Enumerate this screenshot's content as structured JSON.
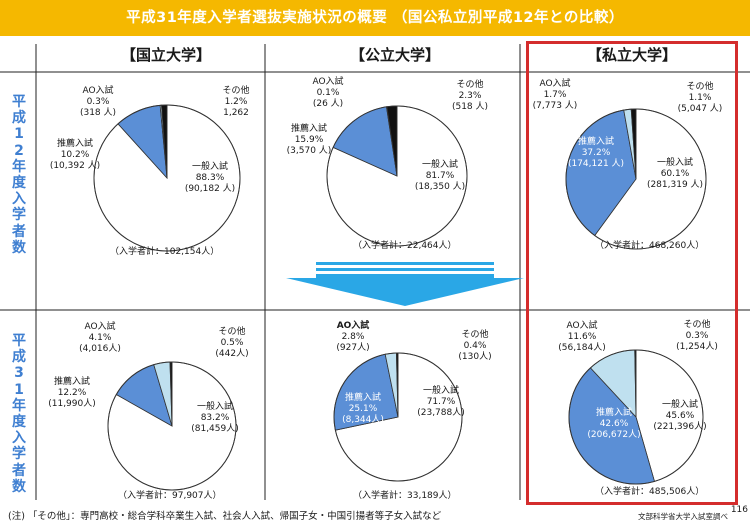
{
  "title": "平成31年度入学者選抜実施状況の概要 （国公私立別平成12年との比較）",
  "columns": [
    "【国立大学】",
    "【公立大学】",
    "【私立大学】"
  ],
  "rows": [
    {
      "label": "平成12年度入学者数"
    },
    {
      "label": "平成31年度入学者数"
    }
  ],
  "colors": {
    "banner": "#f5b800",
    "suisen": "#5b8fd6",
    "ao": "#bfe0ef",
    "other": "#111111",
    "ippan": "#ffffff",
    "highlight": "#d42d2d",
    "arrow": "#2aa7e6",
    "rowlabel": "#3f7fd1"
  },
  "chart_data": [
    {
      "type": "pie",
      "column": "【国立大学】",
      "row": "平成12年度入学者数",
      "slices": [
        {
          "name": "一般入試",
          "percent": "88.3%",
          "count": "(90,182 人)",
          "value": 88.3
        },
        {
          "name": "推薦入試",
          "percent": "10.2%",
          "count": "(10,392 人)",
          "value": 10.2
        },
        {
          "name": "AO入試",
          "percent": "0.3%",
          "count": "(318 人)",
          "value": 0.3
        },
        {
          "name": "その他",
          "percent": "1.2%",
          "count": "1,262",
          "value": 1.2
        }
      ],
      "total": "（入学者計：102,154人）"
    },
    {
      "type": "pie",
      "column": "【公立大学】",
      "row": "平成12年度入学者数",
      "slices": [
        {
          "name": "一般入試",
          "percent": "81.7%",
          "count": "(18,350 人)",
          "value": 81.7
        },
        {
          "name": "推薦入試",
          "percent": "15.9%",
          "count": "(3,570 人)",
          "value": 15.9
        },
        {
          "name": "AO入試",
          "percent": "0.1%",
          "count": "(26 人)",
          "value": 0.1
        },
        {
          "name": "その他",
          "percent": "2.3%",
          "count": "(518 人)",
          "value": 2.3
        }
      ],
      "total": "（入学者計：22,464人）"
    },
    {
      "type": "pie",
      "column": "【私立大学】",
      "row": "平成12年度入学者数",
      "slices": [
        {
          "name": "一般入試",
          "percent": "60.1%",
          "count": "(281,319 人)",
          "value": 60.1
        },
        {
          "name": "推薦入試",
          "percent": "37.2%",
          "count": "(174,121 人)",
          "value": 37.2
        },
        {
          "name": "AO入試",
          "percent": "1.7%",
          "count": "(7,773 人)",
          "value": 1.7
        },
        {
          "name": "その他",
          "percent": "1.1%",
          "count": "(5,047 人)",
          "value": 1.1
        }
      ],
      "total": "（入学者計：468,260人）"
    },
    {
      "type": "pie",
      "column": "【国立大学】",
      "row": "平成31年度入学者数",
      "slices": [
        {
          "name": "一般入試",
          "percent": "83.2%",
          "count": "(81,459人)",
          "value": 83.2
        },
        {
          "name": "推薦入試",
          "percent": "12.2%",
          "count": "(11,990人)",
          "value": 12.2
        },
        {
          "name": "AO入試",
          "percent": "4.1%",
          "count": "(4,016人)",
          "value": 4.1
        },
        {
          "name": "その他",
          "percent": "0.5%",
          "count": "(442人)",
          "value": 0.5
        }
      ],
      "total": "（入学者計：97,907人）"
    },
    {
      "type": "pie",
      "column": "【公立大学】",
      "row": "平成31年度入学者数",
      "slices": [
        {
          "name": "一般入試",
          "percent": "71.7%",
          "count": "(23,788人)",
          "value": 71.7
        },
        {
          "name": "推薦入試",
          "percent": "25.1%",
          "count": "(8,344人)",
          "value": 25.1
        },
        {
          "name": "AO入試",
          "percent": "2.8%",
          "count": "(927人)",
          "value": 2.8
        },
        {
          "name": "その他",
          "percent": "0.4%",
          "count": "(130人)",
          "value": 0.4
        }
      ],
      "total": "（入学者計：33,189人）"
    },
    {
      "type": "pie",
      "column": "【私立大学】",
      "row": "平成31年度入学者数",
      "slices": [
        {
          "name": "一般入試",
          "percent": "45.6%",
          "count": "(221,396人)",
          "value": 45.6
        },
        {
          "name": "推薦入試",
          "percent": "42.6%",
          "count": "(206,672人)",
          "value": 42.6
        },
        {
          "name": "AO入試",
          "percent": "11.6%",
          "count": "(56,184人)",
          "value": 11.6
        },
        {
          "name": "その他",
          "percent": "0.3%",
          "count": "(1,254人)",
          "value": 0.3
        }
      ],
      "total": "（入学者計：485,506人）"
    }
  ],
  "footer": {
    "note": "(注) 「その他」：専門高校・総合学科卒業生入試、社会人入試、帰国子女・中国引揚者等子女入試など",
    "source": "文部科学省大学入試室調べ",
    "page": "116"
  }
}
